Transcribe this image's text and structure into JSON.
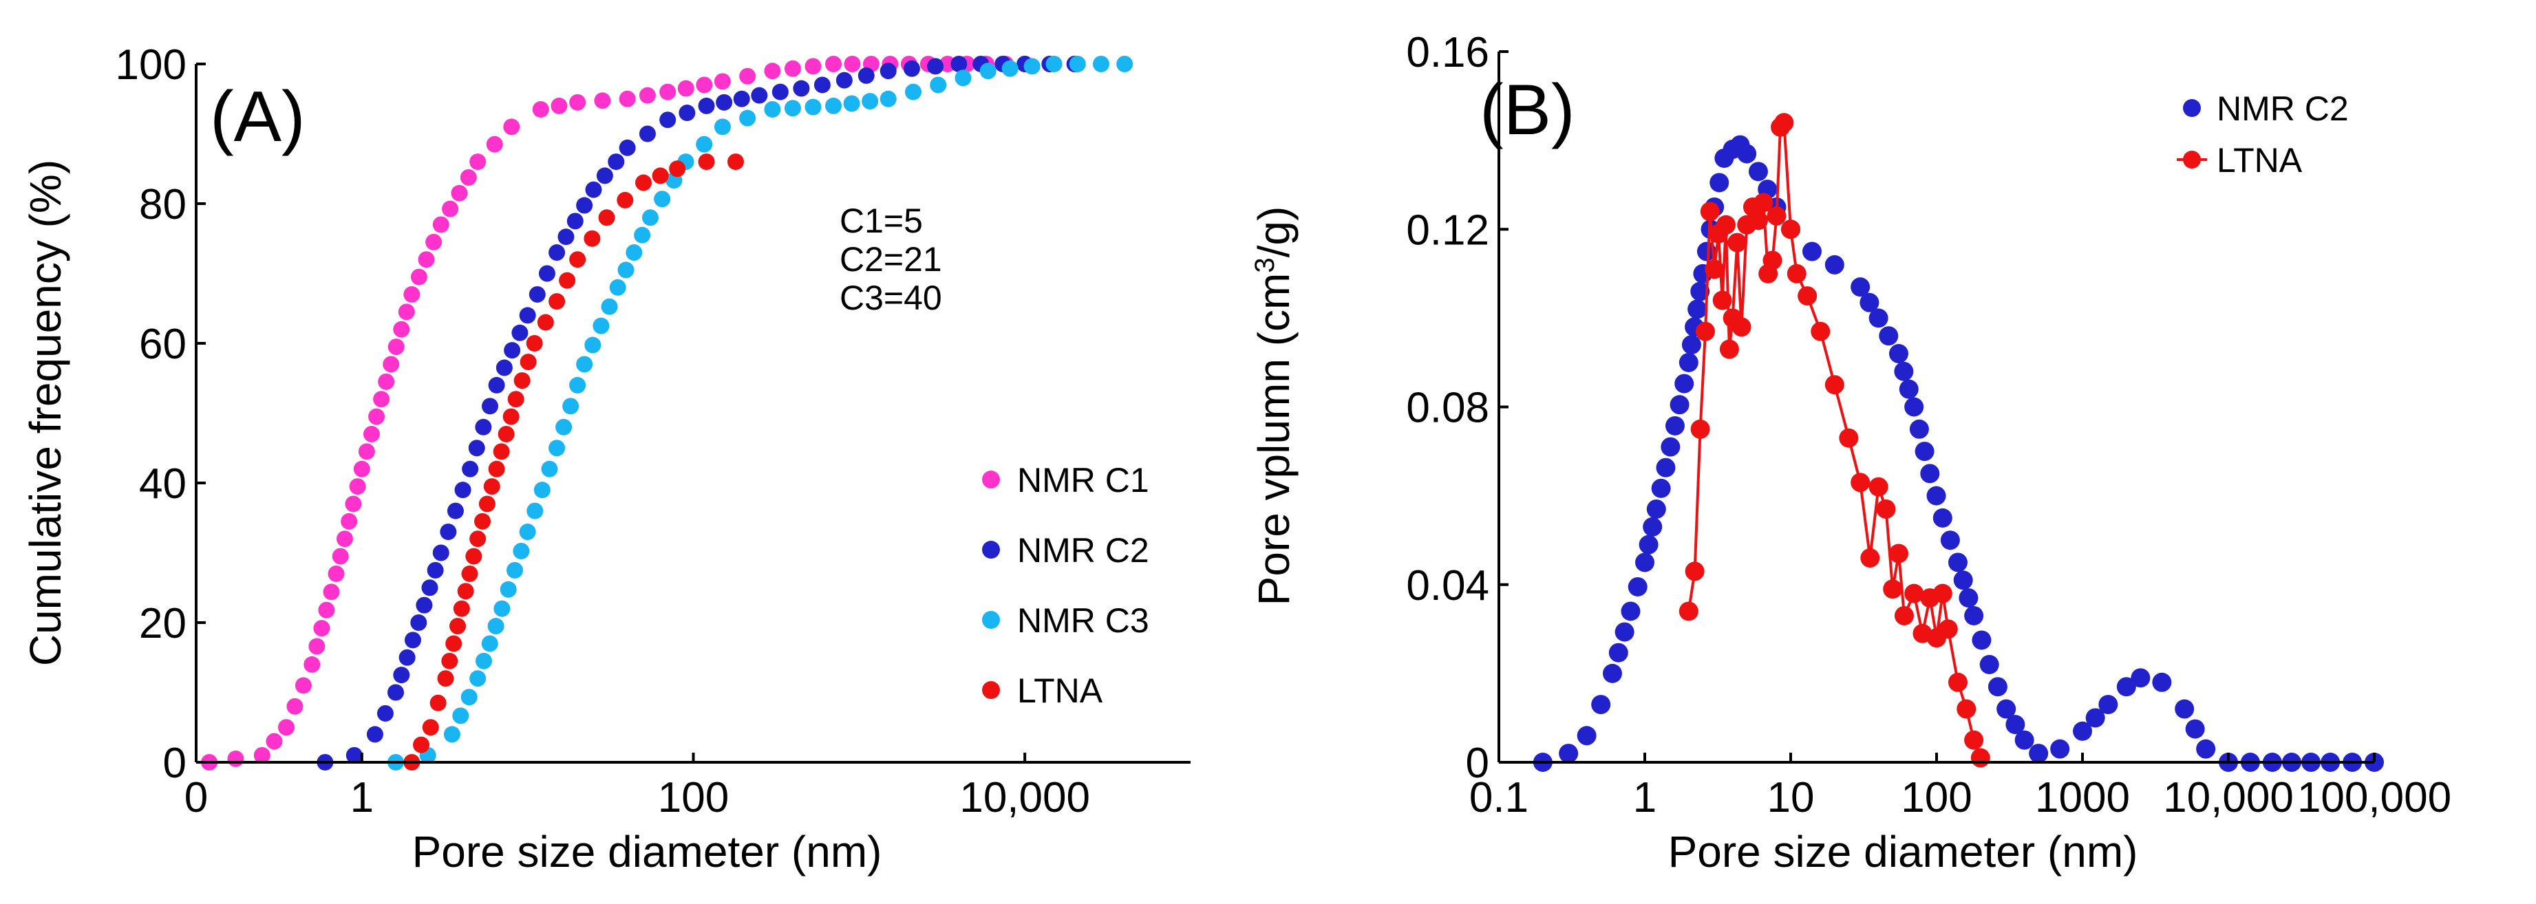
{
  "chart_data": [
    {
      "type": "scatter",
      "panel_label": "(A)",
      "xlabel": "Pore size diameter (nm)",
      "ylabel": "Cumulative frequency (%)",
      "x_scale": "log",
      "xlim": [
        0.1,
        100000
      ],
      "ylim": [
        0,
        100
      ],
      "x_ticks": [
        {
          "value": 0.1,
          "label": "0"
        },
        {
          "value": 1,
          "label": "1"
        },
        {
          "value": 100,
          "label": "100"
        },
        {
          "value": 10000,
          "label": "10,000"
        }
      ],
      "y_ticks": [
        {
          "value": 0,
          "label": "0"
        },
        {
          "value": 20,
          "label": "20"
        },
        {
          "value": 40,
          "label": "40"
        },
        {
          "value": 60,
          "label": "60"
        },
        {
          "value": 80,
          "label": "80"
        },
        {
          "value": 100,
          "label": "100"
        }
      ],
      "annotation": [
        "C1=5",
        "C2=21",
        "C3=40"
      ],
      "legend_position": "bottom-right",
      "series": [
        {
          "name": "NMR C1",
          "color": "#ff33cc",
          "points": [
            [
              0.12,
              0
            ],
            [
              0.25,
              1
            ],
            [
              0.35,
              5
            ],
            [
              0.5,
              14
            ],
            [
              0.7,
              27
            ],
            [
              1,
              42
            ],
            [
              1.5,
              57
            ],
            [
              2,
              67
            ],
            [
              3,
              77
            ],
            [
              5,
              86
            ],
            [
              8,
              91
            ],
            [
              12,
              93.5
            ],
            [
              20,
              94.5
            ],
            [
              40,
              95
            ],
            [
              70,
              96
            ],
            [
              150,
              97.5
            ],
            [
              300,
              99
            ],
            [
              700,
              100
            ],
            [
              2000,
              100
            ],
            [
              10000,
              100
            ],
            [
              20000,
              100
            ]
          ]
        },
        {
          "name": "NMR C2",
          "color": "#2222cc",
          "points": [
            [
              0.6,
              0
            ],
            [
              0.9,
              1
            ],
            [
              1.2,
              4
            ],
            [
              1.6,
              10
            ],
            [
              2.2,
              20
            ],
            [
              3,
              30
            ],
            [
              4.5,
              42
            ],
            [
              6.5,
              54
            ],
            [
              10,
              64
            ],
            [
              15,
              73
            ],
            [
              25,
              82
            ],
            [
              40,
              88
            ],
            [
              70,
              92
            ],
            [
              120,
              94
            ],
            [
              250,
              95.5
            ],
            [
              600,
              97
            ],
            [
              1500,
              99
            ],
            [
              4000,
              100
            ],
            [
              10000,
              100
            ],
            [
              20000,
              100
            ]
          ]
        },
        {
          "name": "NMR C3",
          "color": "#19b5f2",
          "points": [
            [
              1.6,
              0
            ],
            [
              2.5,
              1
            ],
            [
              3.5,
              4
            ],
            [
              5,
              12
            ],
            [
              7,
              22
            ],
            [
              10,
              33
            ],
            [
              15,
              45
            ],
            [
              22,
              57
            ],
            [
              35,
              68
            ],
            [
              55,
              78
            ],
            [
              90,
              86
            ],
            [
              150,
              91
            ],
            [
              300,
              93.5
            ],
            [
              700,
              94
            ],
            [
              1500,
              95
            ],
            [
              3000,
              97
            ],
            [
              6000,
              99
            ],
            [
              15000,
              100
            ],
            [
              40000,
              100
            ]
          ]
        },
        {
          "name": "LTNA",
          "color": "#ee1111",
          "points": [
            [
              2,
              0
            ],
            [
              2.6,
              5
            ],
            [
              3.2,
              12
            ],
            [
              4,
              22
            ],
            [
              5,
              32
            ],
            [
              6.5,
              42
            ],
            [
              8.5,
              52
            ],
            [
              11,
              60
            ],
            [
              15,
              66
            ],
            [
              20,
              72
            ],
            [
              30,
              78
            ],
            [
              50,
              83
            ],
            [
              80,
              85
            ],
            [
              120,
              86
            ],
            [
              180,
              86
            ]
          ]
        }
      ]
    },
    {
      "type": "scatter",
      "panel_label": "(B)",
      "xlabel": "Pore size diameter (nm)",
      "ylabel_prefix": "Pore vplumn (cm",
      "ylabel_sup": "3",
      "ylabel_suffix": "/g)",
      "x_scale": "log",
      "xlim": [
        0.1,
        100000
      ],
      "ylim": [
        0,
        0.16
      ],
      "x_ticks": [
        {
          "value": 0.1,
          "label": "0.1"
        },
        {
          "value": 1,
          "label": "1"
        },
        {
          "value": 10,
          "label": "10"
        },
        {
          "value": 100,
          "label": "100"
        },
        {
          "value": 1000,
          "label": "1000"
        },
        {
          "value": 10000,
          "label": "10,000"
        },
        {
          "value": 100000,
          "label": "100,000"
        }
      ],
      "y_ticks": [
        {
          "value": 0,
          "label": "0"
        },
        {
          "value": 0.04,
          "label": "0.04"
        },
        {
          "value": 0.08,
          "label": "0.08"
        },
        {
          "value": 0.12,
          "label": "0.12"
        },
        {
          "value": 0.16,
          "label": "0.16"
        }
      ],
      "legend_position": "top-right",
      "series": [
        {
          "name": "NMR C2",
          "color": "#2222cc",
          "points": [
            [
              0.2,
              0
            ],
            [
              0.3,
              0.002
            ],
            [
              0.4,
              0.006
            ],
            [
              0.5,
              0.013
            ],
            [
              0.6,
              0.02
            ],
            [
              0.8,
              0.034
            ],
            [
              1,
              0.045
            ],
            [
              1.2,
              0.057
            ],
            [
              1.5,
              0.071
            ],
            [
              2,
              0.09
            ],
            [
              2.5,
              0.11
            ],
            [
              3,
              0.125
            ],
            [
              3.5,
              0.136
            ],
            [
              4,
              0.138
            ],
            [
              4.5,
              0.139
            ],
            [
              5,
              0.137
            ],
            [
              6,
              0.133
            ],
            [
              8,
              0.125
            ],
            [
              10,
              0.12
            ],
            [
              14,
              0.115
            ],
            [
              20,
              0.112
            ],
            [
              30,
              0.107
            ],
            [
              40,
              0.1
            ],
            [
              55,
              0.092
            ],
            [
              70,
              0.08
            ],
            [
              90,
              0.065
            ],
            [
              110,
              0.055
            ],
            [
              140,
              0.045
            ],
            [
              180,
              0.033
            ],
            [
              230,
              0.022
            ],
            [
              300,
              0.012
            ],
            [
              400,
              0.005
            ],
            [
              500,
              0.002
            ],
            [
              700,
              0.003
            ],
            [
              1000,
              0.007
            ],
            [
              1500,
              0.013
            ],
            [
              2000,
              0.017
            ],
            [
              2500,
              0.019
            ],
            [
              3500,
              0.018
            ],
            [
              5000,
              0.012
            ],
            [
              7000,
              0.003
            ],
            [
              10000,
              0
            ],
            [
              20000,
              0
            ],
            [
              50000,
              0
            ],
            [
              100000,
              0
            ]
          ]
        },
        {
          "name": "LTNA",
          "color": "#ee1111",
          "points": [
            [
              2,
              0.034
            ],
            [
              2.2,
              0.043
            ],
            [
              2.4,
              0.075
            ],
            [
              2.6,
              0.097
            ],
            [
              2.8,
              0.124
            ],
            [
              3,
              0.111
            ],
            [
              3.2,
              0.119
            ],
            [
              3.4,
              0.104
            ],
            [
              3.6,
              0.121
            ],
            [
              3.8,
              0.093
            ],
            [
              4,
              0.1
            ],
            [
              4.3,
              0.117
            ],
            [
              4.6,
              0.098
            ],
            [
              5,
              0.121
            ],
            [
              5.5,
              0.125
            ],
            [
              6,
              0.122
            ],
            [
              6.5,
              0.126
            ],
            [
              7,
              0.11
            ],
            [
              7.5,
              0.113
            ],
            [
              8,
              0.123
            ],
            [
              8.5,
              0.143
            ],
            [
              9,
              0.144
            ],
            [
              10,
              0.12
            ],
            [
              11,
              0.11
            ],
            [
              13,
              0.105
            ],
            [
              16,
              0.097
            ],
            [
              20,
              0.085
            ],
            [
              25,
              0.073
            ],
            [
              30,
              0.063
            ],
            [
              35,
              0.046
            ],
            [
              40,
              0.062
            ],
            [
              45,
              0.057
            ],
            [
              50,
              0.039
            ],
            [
              55,
              0.047
            ],
            [
              60,
              0.033
            ],
            [
              70,
              0.038
            ],
            [
              80,
              0.029
            ],
            [
              90,
              0.037
            ],
            [
              100,
              0.028
            ],
            [
              110,
              0.038
            ],
            [
              120,
              0.03
            ],
            [
              140,
              0.018
            ],
            [
              160,
              0.012
            ],
            [
              180,
              0.005
            ],
            [
              200,
              0.001
            ]
          ]
        }
      ]
    }
  ]
}
